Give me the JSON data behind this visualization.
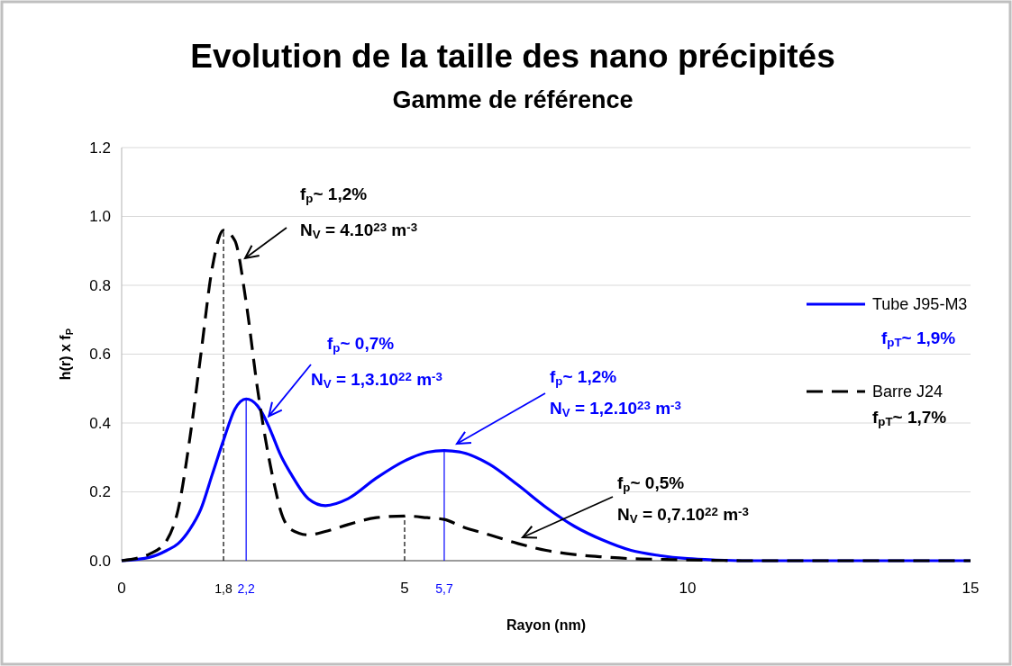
{
  "chart_data": {
    "type": "line",
    "title": "Evolution de la taille des nano précipités",
    "subtitle": "Gamme de référence",
    "xlabel": "Rayon (nm)",
    "ylabel": "h(r) x f$_{P}$",
    "x": [
      0,
      0.5,
      0.8,
      1.0,
      1.2,
      1.4,
      1.6,
      1.8,
      2.0,
      2.2,
      2.4,
      2.6,
      2.7,
      2.8,
      3.0,
      3.3,
      3.6,
      4.0,
      4.5,
      5.0,
      5.4,
      5.7,
      6.0,
      6.5,
      7.0,
      7.5,
      8.0,
      8.5,
      9.0,
      9.5,
      10,
      10.5,
      11,
      15
    ],
    "series": [
      {
        "name": "Tube J95-M3",
        "color": "#0000ff",
        "line_style": "solid",
        "values": [
          0,
          0.01,
          0.03,
          0.05,
          0.09,
          0.15,
          0.25,
          0.35,
          0.44,
          0.47,
          0.45,
          0.39,
          0.35,
          0.31,
          0.25,
          0.18,
          0.16,
          0.18,
          0.24,
          0.29,
          0.315,
          0.32,
          0.315,
          0.28,
          0.22,
          0.155,
          0.1,
          0.06,
          0.03,
          0.015,
          0.006,
          0.002,
          0,
          0
        ]
      },
      {
        "name": "Barre J24",
        "color": "#000000",
        "line_style": "dashed",
        "values": [
          0,
          0.02,
          0.06,
          0.15,
          0.35,
          0.6,
          0.85,
          0.96,
          0.93,
          0.75,
          0.5,
          0.3,
          0.22,
          0.15,
          0.09,
          0.075,
          0.085,
          0.105,
          0.125,
          0.13,
          0.125,
          0.12,
          0.1,
          0.075,
          0.05,
          0.03,
          0.018,
          0.011,
          0.006,
          0.004,
          0.002,
          0.001,
          0,
          0
        ]
      }
    ],
    "xlim": [
      0,
      15
    ],
    "xticks": [
      0,
      5,
      10,
      15
    ],
    "ylim": [
      0,
      1.2
    ],
    "yticks": [
      {
        "value": 0,
        "label": "0.0"
      },
      {
        "value": 0.2,
        "label": "0.2"
      },
      {
        "value": 0.4,
        "label": "0.4"
      },
      {
        "value": 0.6,
        "label": "0.6"
      },
      {
        "value": 0.8,
        "label": "0.8"
      },
      {
        "value": 1.0,
        "label": "1.0"
      },
      {
        "value": 1.2,
        "label": "1.2"
      }
    ],
    "grid": "y",
    "legend": "right",
    "ref_lines": [
      {
        "axis": "x",
        "value": 1.8,
        "label": "1,8",
        "color": "#000000",
        "line_style": "dashed"
      },
      {
        "axis": "x",
        "value": 2.2,
        "label": "2,2",
        "color": "#0000ff",
        "line_style": "solid"
      },
      {
        "axis": "x",
        "value": 5,
        "color": "#000000",
        "line_style": "dashed"
      },
      {
        "axis": "x",
        "value": 5.7,
        "label": "5,7",
        "color": "#0000ff",
        "line_style": "solid"
      }
    ],
    "annotations": [
      "f$_{p}$~ 1,2%",
      "N$_{V}$ = 4.10$^{23}$ m$^{-3}$",
      {
        "text": "f$_{p}$~ 0,7%",
        "x": 2.6,
        "y": 0.42
      },
      "N$_{V}$ = 1,3.10$^{22}$ m$^{-3}$",
      "f$_{p}$~ 1,2%",
      "N$_{V}$ = 1,2.10$^{23}$ m$^{-3}$",
      "f$_{p}$~ 0,5%",
      "N$_{V}$ = 0,7.10$^{22}$ m$^{-3}$",
      "f$_{pT}$~ 1,9%",
      "f$_{pT}$~ 1,7%"
    ]
  }
}
